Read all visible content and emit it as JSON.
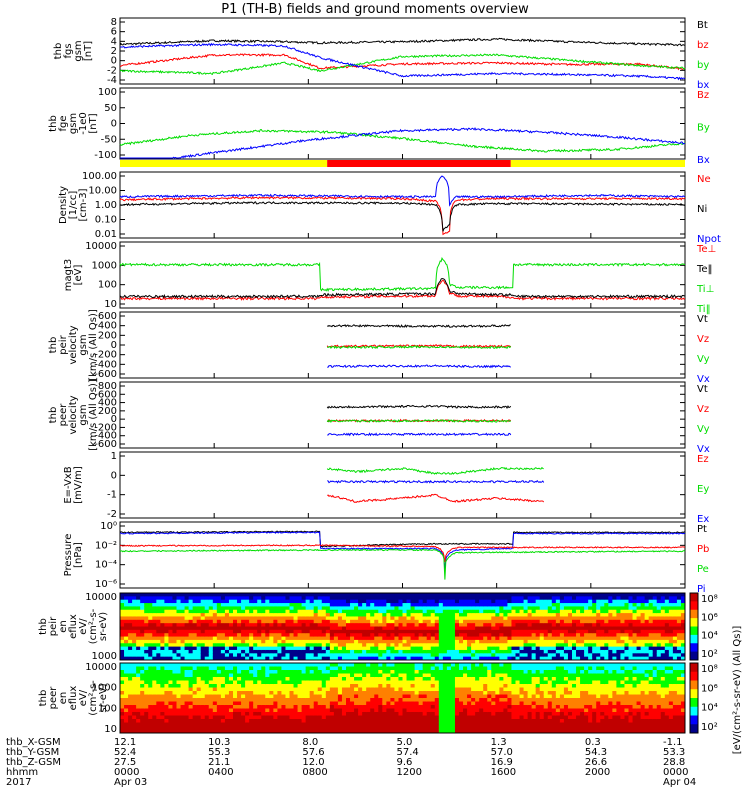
{
  "title": "P1 (TH-B) fields and ground moments overview",
  "colors": {
    "black": "#000000",
    "red": "#ff0000",
    "green": "#00dd00",
    "blue": "#0000ff",
    "yellow": "#ffff00"
  },
  "chart_data": [
    {
      "type": "line",
      "panel": "fgs",
      "ylabel": [
        "thb",
        "fgs",
        "gsm",
        "[nT]"
      ],
      "yticks": [
        "8",
        "6",
        "4",
        "2",
        "0",
        "-2",
        "-4"
      ],
      "ylim": [
        -4,
        8.5
      ],
      "legend": [
        {
          "name": "Bt",
          "color": "#000000"
        },
        {
          "name": "bz",
          "color": "#ff0000"
        },
        {
          "name": "by",
          "color": "#00dd00"
        },
        {
          "name": "bx",
          "color": "#0000ff"
        }
      ],
      "series": [
        {
          "name": "Bt",
          "x": [
            0,
            4,
            7,
            8.5,
            12,
            16,
            19,
            22,
            24
          ],
          "values": [
            3.5,
            4.2,
            4.0,
            3.8,
            4.0,
            4.5,
            4.0,
            3.6,
            3.4
          ]
        },
        {
          "name": "bz",
          "x": [
            0,
            4,
            7,
            8.5,
            12,
            16,
            19,
            22,
            24
          ],
          "values": [
            -0.5,
            1.5,
            1.5,
            -1.0,
            -0.2,
            0,
            -0.3,
            -0.2,
            -1.2
          ]
        },
        {
          "name": "by",
          "x": [
            0,
            4,
            7,
            8.5,
            12,
            16,
            19,
            22,
            24
          ],
          "values": [
            -1.5,
            -2.0,
            0,
            -1.5,
            1.2,
            1.5,
            0.5,
            -0.5,
            -1.0
          ]
        },
        {
          "name": "bx",
          "x": [
            0,
            4,
            7,
            8.5,
            12,
            16,
            19,
            22,
            24
          ],
          "values": [
            3.0,
            3.5,
            3.2,
            1.0,
            -2.5,
            -2.0,
            -2.2,
            -2.5,
            -3.0
          ]
        }
      ]
    },
    {
      "type": "line",
      "panel": "fge",
      "ylabel": [
        "thb",
        "fge",
        "gsm",
        "-1e0",
        "[nT]"
      ],
      "yticks": [
        "100",
        "50",
        "0",
        "-50",
        "-100"
      ],
      "ylim": [
        -120,
        105
      ],
      "legend": [
        {
          "name": "Bz",
          "color": "#ff0000"
        },
        {
          "name": "By",
          "color": "#00dd00"
        },
        {
          "name": "Bx",
          "color": "#0000ff"
        }
      ],
      "series": [
        {
          "name": "By",
          "x": [
            0,
            3,
            6,
            9,
            12,
            15,
            18,
            21,
            24
          ],
          "values": [
            -75,
            -45,
            -30,
            -35,
            -55,
            -80,
            -95,
            -90,
            -70
          ]
        },
        {
          "name": "Bx",
          "x": [
            0,
            2,
            4,
            6,
            8,
            10,
            12,
            15,
            18,
            21,
            24
          ],
          "values": [
            -150,
            -120,
            -100,
            -80,
            -60,
            -45,
            -30,
            -25,
            -35,
            -50,
            -70
          ]
        }
      ]
    },
    {
      "type": "bar",
      "panel": "mode",
      "colors": [
        "#ffff00",
        "#ff0000",
        "#ffff00"
      ],
      "x_ranges": [
        [
          0,
          8.8
        ],
        [
          8.8,
          16.6
        ],
        [
          16.6,
          24
        ]
      ]
    },
    {
      "type": "line",
      "panel": "density",
      "ylabel": [
        "Density",
        "[1/cc]",
        "[cm-3]"
      ],
      "yticks": [
        "100.00",
        "10.00",
        "1.00",
        "0.10",
        "0.01"
      ],
      "log": true,
      "ylim": [
        0.007,
        180
      ],
      "legend": [
        {
          "name": "Ne",
          "color": "#ff0000"
        },
        {
          "name": "Ni",
          "color": "#000000"
        },
        {
          "name": "Npot",
          "color": "#0000ff"
        }
      ],
      "series": [
        {
          "name": "Npot",
          "x": [
            0,
            6,
            12,
            13.4,
            13.7,
            14.0,
            14.3,
            16,
            20,
            24
          ],
          "values": [
            4,
            5,
            4,
            4,
            100,
            1,
            4,
            4,
            5,
            4
          ]
        },
        {
          "name": "Ne",
          "x": [
            0,
            6,
            12,
            13.4,
            13.7,
            14.0,
            14.3,
            16,
            20,
            24
          ],
          "values": [
            2.5,
            3.5,
            3,
            2,
            0.01,
            0.02,
            2.5,
            3,
            3,
            3
          ]
        },
        {
          "name": "Ni",
          "x": [
            0,
            6,
            12,
            13.4,
            13.7,
            14.0,
            14.3,
            16,
            20,
            24
          ],
          "values": [
            1.2,
            1.6,
            1.5,
            1.2,
            0.02,
            0.05,
            1.2,
            1.4,
            1.3,
            1.2
          ]
        }
      ]
    },
    {
      "type": "line",
      "panel": "temp",
      "ylabel": [
        "magt3",
        "[eV]"
      ],
      "yticks": [
        "10000",
        "1000",
        "100",
        "10"
      ],
      "log": true,
      "ylim": [
        3,
        12000
      ],
      "legend": [
        {
          "name": "Te⊥",
          "color": "#ff0000"
        },
        {
          "name": "Te‖",
          "color": "#000000"
        },
        {
          "name": "Ti⊥",
          "color": "#00dd00"
        },
        {
          "name": "Ti‖",
          "color": "#00dd00"
        }
      ],
      "series": [
        {
          "name": "Ti",
          "x": [
            0,
            8.5,
            8.51,
            13.4,
            13.7,
            14.0,
            14.3,
            16.7,
            16.71,
            24
          ],
          "values": [
            700,
            700,
            30,
            35,
            1500,
            60,
            40,
            40,
            700,
            700
          ]
        },
        {
          "name": "Te",
          "x": [
            0,
            8.5,
            8.51,
            13.4,
            13.7,
            14.0,
            14.3,
            16.7,
            16.71,
            24
          ],
          "values": [
            10,
            10,
            12,
            14,
            100,
            20,
            14,
            12,
            10,
            10
          ]
        }
      ]
    },
    {
      "type": "line",
      "panel": "ion_vel",
      "ylabel": [
        "thb",
        "peir",
        "velocity",
        "gsm",
        "[km/s (All Qs)]"
      ],
      "yticks": [
        "600",
        "400",
        "200",
        "0",
        "-200",
        "-400",
        "-600"
      ],
      "ylim": [
        -600,
        650
      ],
      "legend": [
        {
          "name": "Vt",
          "color": "#000000"
        },
        {
          "name": "Vz",
          "color": "#ff0000"
        },
        {
          "name": "Vy",
          "color": "#00dd00"
        },
        {
          "name": "Vx",
          "color": "#0000ff"
        }
      ],
      "series": [
        {
          "name": "Vt",
          "x": [
            8.8,
            13.5,
            14.2,
            16.6
          ],
          "values": [
            390,
            380,
            380,
            390
          ]
        },
        {
          "name": "Vz",
          "x": [
            8.8,
            13.5,
            14.2,
            16.6
          ],
          "values": [
            0,
            10,
            0,
            0
          ]
        },
        {
          "name": "Vy",
          "x": [
            8.8,
            13.5,
            14.2,
            16.6
          ],
          "values": [
            -20,
            -10,
            -20,
            -20
          ]
        },
        {
          "name": "Vx",
          "x": [
            8.8,
            13.5,
            14.2,
            16.6
          ],
          "values": [
            -380,
            -370,
            -380,
            -380
          ]
        }
      ]
    },
    {
      "type": "line",
      "panel": "elec_vel",
      "ylabel": [
        "thb",
        "peer",
        "velocity",
        "gsm",
        "[km/s (All Qs)]"
      ],
      "yticks": [
        "800",
        "600",
        "400",
        "200",
        "0",
        "-200",
        "-400",
        "-600"
      ],
      "ylim": [
        -600,
        850
      ],
      "legend": [
        {
          "name": "Vt",
          "color": "#000000"
        },
        {
          "name": "Vz",
          "color": "#ff0000"
        },
        {
          "name": "Vy",
          "color": "#00dd00"
        },
        {
          "name": "Vx",
          "color": "#0000ff"
        }
      ],
      "series": [
        {
          "name": "Vt",
          "x": [
            8.8,
            13.5,
            14.2,
            16.6
          ],
          "values": [
            300,
            320,
            300,
            300
          ]
        },
        {
          "name": "Vz",
          "x": [
            8.8,
            13.5,
            14.2,
            16.6
          ],
          "values": [
            0,
            0,
            0,
            0
          ]
        },
        {
          "name": "Vy",
          "x": [
            8.8,
            13.5,
            14.2,
            16.6
          ],
          "values": [
            -10,
            0,
            -10,
            -10
          ]
        },
        {
          "name": "Vx",
          "x": [
            8.8,
            13.5,
            14.2,
            16.6
          ],
          "values": [
            -300,
            -300,
            -300,
            -300
          ]
        }
      ]
    },
    {
      "type": "line",
      "panel": "efield",
      "ylabel": [
        "E=-VxB",
        "[mV/m]"
      ],
      "yticks": [
        "1",
        "0",
        "-1",
        "-2"
      ],
      "ylim": [
        -2.2,
        1.8
      ],
      "legend": [
        {
          "name": "Ez",
          "color": "#ff0000"
        },
        {
          "name": "Ey",
          "color": "#00dd00"
        },
        {
          "name": "Ex",
          "color": "#0000ff"
        }
      ],
      "series": [
        {
          "name": "Ey",
          "x": [
            8.8,
            10,
            12,
            13.4,
            14.2,
            16,
            18
          ],
          "values": [
            0.8,
            0.6,
            0.8,
            0.5,
            0.5,
            0.8,
            0.8
          ]
        },
        {
          "name": "Ex",
          "x": [
            8.8,
            10,
            12,
            13.4,
            14.2,
            16,
            18
          ],
          "values": [
            0,
            0,
            0,
            0,
            0,
            0,
            0
          ]
        },
        {
          "name": "Ez",
          "x": [
            8.8,
            10,
            12,
            13.4,
            14.2,
            16,
            18
          ],
          "values": [
            -0.8,
            -1.2,
            -1.0,
            -0.8,
            -1.2,
            -1.0,
            -1.2
          ]
        }
      ]
    },
    {
      "type": "line",
      "panel": "pressure",
      "ylabel": [
        "Pressure",
        "[nPa]"
      ],
      "yticks": [
        "10⁰",
        "10⁻²",
        "10⁻⁴",
        "10⁻⁶"
      ],
      "log": true,
      "ylim": [
        1e-07,
        3
      ],
      "legend": [
        {
          "name": "Pt",
          "color": "#000000"
        },
        {
          "name": "Pb",
          "color": "#ff0000"
        },
        {
          "name": "Pe",
          "color": "#00dd00"
        },
        {
          "name": "Pi",
          "color": "#0000ff"
        }
      ],
      "series": [
        {
          "name": "Pt",
          "x": [
            0,
            8.5,
            8.51,
            13.4,
            16.7,
            16.71,
            24
          ],
          "values": [
            0.2,
            0.25,
            0.005,
            0.01,
            0.01,
            0.2,
            0.2
          ]
        },
        {
          "name": "Pi",
          "x": [
            0,
            8.5,
            8.51,
            13.4,
            13.8,
            14.3,
            16.7,
            16.71,
            24
          ],
          "values": [
            0.15,
            0.2,
            0.003,
            0.003,
            1e-05,
            0.002,
            0.003,
            0.15,
            0.15
          ]
        },
        {
          "name": "Pb",
          "x": [
            0,
            8.5,
            13.4,
            13.8,
            14.3,
            24
          ],
          "values": [
            0.006,
            0.007,
            0.005,
            0.0001,
            0.004,
            0.004
          ]
        },
        {
          "name": "Pe",
          "x": [
            0,
            8.5,
            13.4,
            13.8,
            14.3,
            24
          ],
          "values": [
            0.0015,
            0.002,
            0.002,
            1e-06,
            0.001,
            0.0015
          ]
        }
      ]
    },
    {
      "type": "heatmap",
      "panel": "ion_spec",
      "ylabel": [
        "thb",
        "peir",
        "en",
        "eflux",
        "eV/",
        "(cm²-s-",
        "sr-eV)"
      ],
      "yticks": [
        "10000",
        "1000"
      ],
      "log": true,
      "ylim": [
        5,
        25000
      ],
      "colorbar": {
        "ticks": [
          "10⁸",
          "10⁶",
          "10⁴",
          "10²"
        ],
        "label": "[eV/(cm²-s-sr-eV)]",
        "label2": "[eV/(cm²-s-sr-eV) (All Qs)]"
      }
    },
    {
      "type": "heatmap",
      "panel": "elec_spec",
      "ylabel": [
        "thb",
        "peer",
        "en",
        "eflux",
        "eV/",
        "(cm²-s-",
        "sr-eV)"
      ],
      "yticks": [
        "10000",
        "1000",
        "100",
        "10"
      ],
      "log": true,
      "ylim": [
        5,
        25000
      ],
      "colorbar": {
        "ticks": [
          "10⁸",
          "10⁶",
          "10⁴",
          "10²"
        ]
      }
    }
  ],
  "footer": {
    "rows": [
      {
        "label": "thb_X-GSM",
        "values": [
          "12.1",
          "10.3",
          "8.0",
          "5.0",
          "1.3",
          "0.3",
          "-1.1"
        ]
      },
      {
        "label": "thb_Y-GSM",
        "values": [
          "52.4",
          "55.3",
          "57.6",
          "57.4",
          "57.0",
          "54.3",
          "53.3"
        ]
      },
      {
        "label": "thb_Z-GSM",
        "values": [
          "27.5",
          "21.1",
          "12.0",
          "9.6",
          "16.9",
          "26.6",
          "28.8"
        ]
      },
      {
        "label": "hhmm",
        "values": [
          "0000",
          "0400",
          "0800",
          "1200",
          "1600",
          "2000",
          "0000"
        ]
      }
    ],
    "year": "2017",
    "date_start": "Apr 03",
    "date_end": "Apr 04"
  }
}
